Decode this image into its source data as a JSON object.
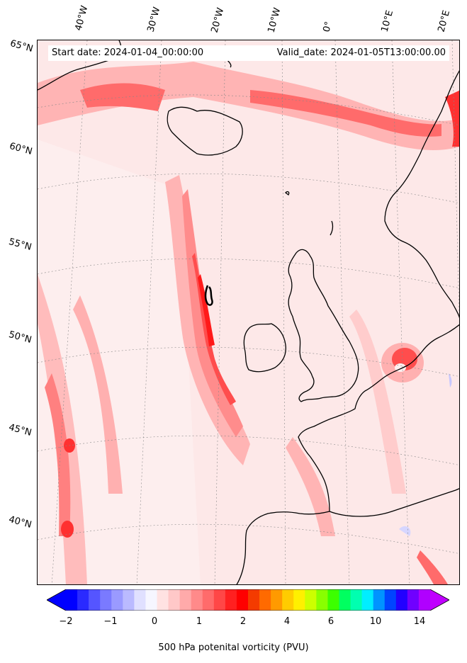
{
  "header": {
    "start_date": "Start date: 2024-01-04_00:00:00",
    "valid_date": "Valid_date: 2024-01-05T13:00:00.00"
  },
  "longitude_labels": [
    "40°W",
    "30°W",
    "20°W",
    "10°W",
    "0°",
    "10°E",
    "20°E"
  ],
  "latitude_labels": [
    "65°N",
    "60°N",
    "55°N",
    "50°N",
    "45°N",
    "40°N"
  ],
  "colorbar": {
    "label": "500 hPa potenital vorticity (PVU)",
    "ticks": [
      "−2",
      "−1",
      "0",
      "1",
      "2",
      "4",
      "6",
      "10",
      "14"
    ],
    "colors": [
      "#0000ff",
      "#2a2aff",
      "#5555ff",
      "#7a7aff",
      "#9a9aff",
      "#babaff",
      "#e0e0ff",
      "#f6f6ff",
      "#ffe2e2",
      "#ffc8c8",
      "#ffaaaa",
      "#ff8a8a",
      "#ff6b6b",
      "#ff4747",
      "#ff2020",
      "#ff0000",
      "#f43b00",
      "#ff6a00",
      "#ff9a00",
      "#ffcc00",
      "#fff000",
      "#ccff00",
      "#88ff00",
      "#3cff00",
      "#00ff60",
      "#00ffb0",
      "#00eeff",
      "#0094ff",
      "#0044ff",
      "#2200ff",
      "#7000ff",
      "#b000ff"
    ],
    "under_color": "#0000ff",
    "over_color": "#c000ff"
  },
  "map": {
    "land_color": "none",
    "coastline_color": "#000000",
    "contour_color": "#000000"
  }
}
